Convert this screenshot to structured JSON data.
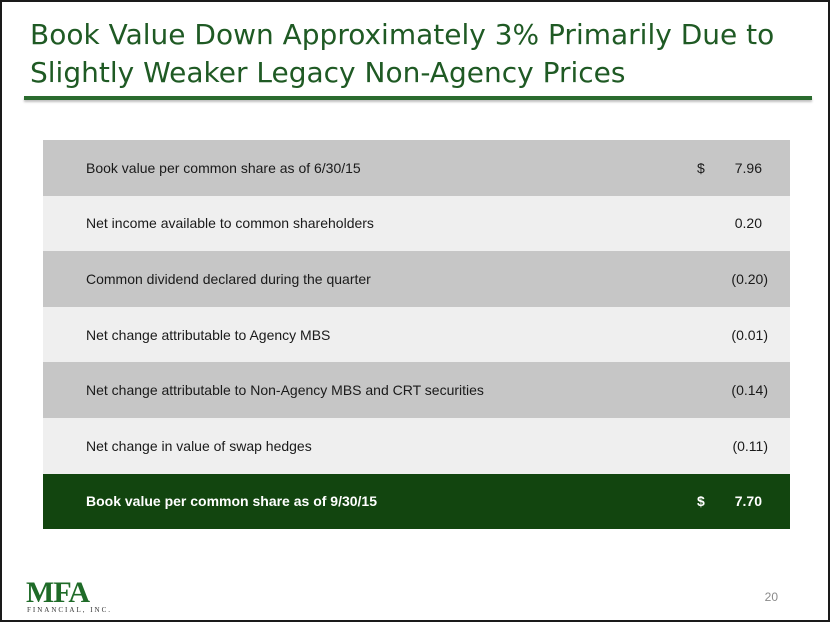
{
  "slide": {
    "title_line1": "Book Value Down Approximately 3% Primarily Due to",
    "title_line2": "Slightly Weaker Legacy Non-Agency Prices",
    "page_number": "20"
  },
  "table": {
    "rows": [
      {
        "label": "Book value per common share as of 6/30/15",
        "currency": "$",
        "value": "7.96"
      },
      {
        "label": "Net income available to common shareholders",
        "currency": "",
        "value": "0.20"
      },
      {
        "label": "Common dividend declared during the quarter",
        "currency": "",
        "value": "(0.20)"
      },
      {
        "label": "Net change attributable to Agency MBS",
        "currency": "",
        "value": "(0.01)"
      },
      {
        "label": "Net change attributable to Non-Agency MBS and CRT securities",
        "currency": "",
        "value": "(0.14)"
      },
      {
        "label": "Net change in value of swap hedges",
        "currency": "",
        "value": "(0.11)"
      }
    ],
    "total": {
      "label": "Book value per common share as of 9/30/15",
      "currency": "$",
      "value": "7.70"
    }
  },
  "logo": {
    "letters": "MFA",
    "subtitle": "FINANCIAL, INC."
  },
  "colors": {
    "title": "#1f5a24",
    "rule": "#2a6b2e",
    "row_dark": "#c6c6c6",
    "row_light": "#efefef",
    "total_row": "#12450f"
  }
}
